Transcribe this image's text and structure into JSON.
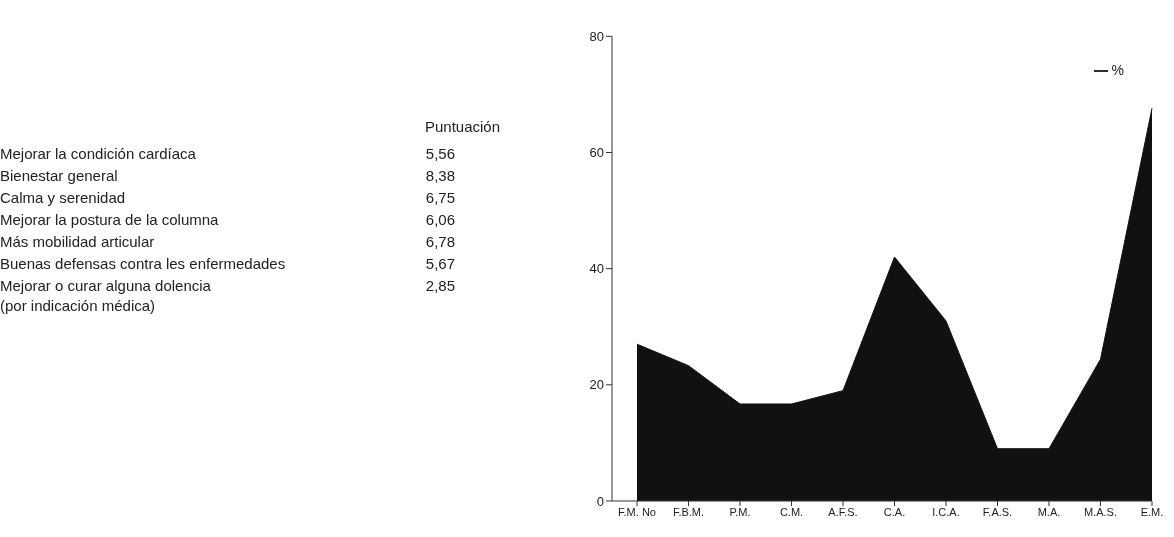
{
  "chart_data": [
    {
      "type": "other",
      "title": "Puntuación",
      "categories": [
        "Mejorar la condición cardíaca",
        "Bienestar general",
        "Calma y serenidad",
        "Mejorar la postura de la columna",
        "Más mobilidad articular",
        "Buenas defensas contra les enfermedades",
        "Mejorar o curar alguna dolencia\n(por indicación médica)"
      ],
      "value_labels": [
        "5,56",
        "8,38",
        "6,75",
        "6,06",
        "6,78",
        "5,67",
        "2,85"
      ]
    },
    {
      "type": "area",
      "categories": [
        "F.M. No",
        "F.B.M.",
        "P.M.",
        "C.M.",
        "A.F.S.",
        "C.A.",
        "I.C.A.",
        "F.A.S.",
        "M.A.",
        "M.A.S.",
        "E.M."
      ],
      "series": [
        {
          "name": "%",
          "color": "#111111",
          "values": [
            27,
            23.3,
            16.7,
            16.7,
            19,
            42,
            31,
            9,
            9,
            24.4,
            67.6
          ]
        }
      ],
      "ylim": [
        0,
        80
      ],
      "yticks": [
        0,
        20,
        40,
        60,
        80
      ],
      "legend": "top right"
    }
  ]
}
